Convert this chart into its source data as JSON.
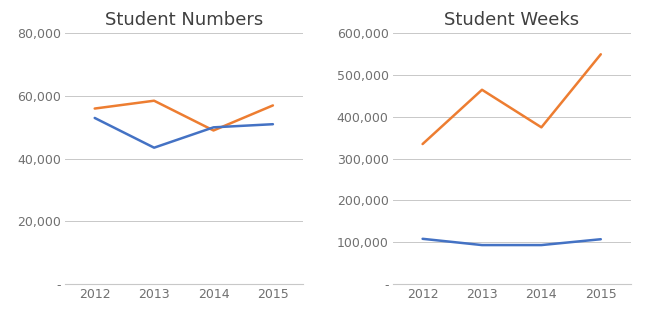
{
  "years": [
    2012,
    2013,
    2014,
    2015
  ],
  "student_numbers": {
    "title": "Student Numbers",
    "blue": [
      53000,
      43500,
      50000,
      51000
    ],
    "orange": [
      56000,
      58500,
      49000,
      57000
    ],
    "ylim": [
      0,
      80000
    ],
    "yticks": [
      0,
      20000,
      40000,
      60000,
      80000
    ]
  },
  "student_weeks": {
    "title": "Student Weeks",
    "blue": [
      108000,
      93000,
      93000,
      107000
    ],
    "orange": [
      335000,
      465000,
      375000,
      550000
    ],
    "ylim": [
      0,
      600000
    ],
    "yticks": [
      0,
      100000,
      200000,
      300000,
      400000,
      500000,
      600000
    ]
  },
  "blue_color": "#4472c4",
  "orange_color": "#ed7d31",
  "line_width": 1.8,
  "title_fontsize": 13,
  "tick_fontsize": 9,
  "background_color": "#ffffff",
  "grid_color": "#c8c8c8",
  "zero_label": "-"
}
